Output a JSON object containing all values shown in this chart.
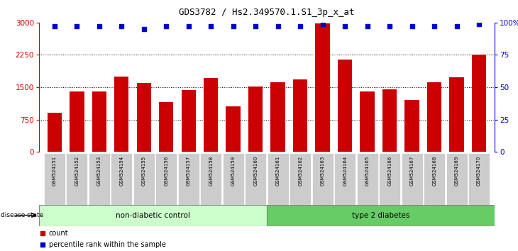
{
  "title": "GDS3782 / Hs2.349570.1.S1_3p_x_at",
  "samples": [
    "GSM524151",
    "GSM524152",
    "GSM524153",
    "GSM524154",
    "GSM524155",
    "GSM524156",
    "GSM524157",
    "GSM524158",
    "GSM524159",
    "GSM524160",
    "GSM524161",
    "GSM524162",
    "GSM524163",
    "GSM524164",
    "GSM524165",
    "GSM524166",
    "GSM524167",
    "GSM524168",
    "GSM524169",
    "GSM524170"
  ],
  "counts": [
    900,
    1400,
    1400,
    1750,
    1600,
    1150,
    1430,
    1720,
    1050,
    1510,
    1620,
    1680,
    2980,
    2150,
    1400,
    1450,
    1200,
    1620,
    1730,
    2250
  ],
  "percentiles": [
    97,
    97,
    97,
    97,
    95,
    97,
    97,
    97,
    97,
    97,
    97,
    97,
    99,
    97,
    97,
    97,
    97,
    97,
    97,
    99
  ],
  "bar_color": "#cc0000",
  "dot_color": "#0000cc",
  "ylim_left": [
    0,
    3000
  ],
  "ylim_right": [
    0,
    100
  ],
  "yticks_left": [
    0,
    750,
    1500,
    2250,
    3000
  ],
  "yticks_right": [
    0,
    25,
    50,
    75,
    100
  ],
  "grid_values": [
    750,
    1500,
    2250
  ],
  "group1_label": "non-diabetic control",
  "group2_label": "type 2 diabetes",
  "group1_count": 10,
  "legend_count_label": "count",
  "legend_pct_label": "percentile rank within the sample",
  "disease_state_label": "disease state",
  "group1_color": "#ccffcc",
  "group2_color": "#66cc66",
  "bg_color": "#ffffff",
  "tick_label_bg": "#cccccc",
  "border_color": "#888888"
}
